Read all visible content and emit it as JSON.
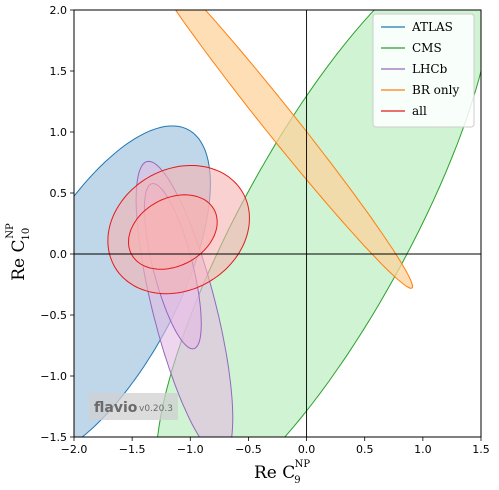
{
  "chart_data": {
    "type": "contour",
    "xlim": [
      -2.0,
      1.5
    ],
    "ylim": [
      -1.5,
      2.0
    ],
    "x_ticks": [
      -2.0,
      -1.5,
      -1.0,
      -0.5,
      0.0,
      0.5,
      1.0,
      1.5
    ],
    "y_ticks": [
      -1.5,
      -1.0,
      -0.5,
      0.0,
      0.5,
      1.0,
      1.5,
      2.0
    ],
    "x_tick_labels": [
      "−2.0",
      "−1.5",
      "−1.0",
      "−0.5",
      "0.0",
      "0.5",
      "1.0",
      "1.5"
    ],
    "y_tick_labels": [
      "−1.5",
      "−1.0",
      "−0.5",
      "0.0",
      "0.5",
      "1.0",
      "1.5",
      "2.0"
    ],
    "xlabel": {
      "main": "Re C",
      "sub": "9",
      "sup": "NP"
    },
    "ylabel": {
      "main": "Re C",
      "sub": "10",
      "sup": "NP"
    },
    "grid": false,
    "zero_lines": true,
    "legend_position": "top-right",
    "watermark": {
      "name": "flavio",
      "version": "v0.20.3"
    },
    "series": [
      {
        "name": "ATLAS",
        "color": "#1f77b4",
        "fill": "#aac9e2",
        "regions": [
          {
            "level": "1sigma",
            "center": [
              -1.78,
              -0.33
            ],
            "radii": [
              0.64,
              1.55
            ],
            "angle_deg": -30
          }
        ]
      },
      {
        "name": "CMS",
        "color": "#2ca02c",
        "fill": "#bfefc4",
        "regions": [
          {
            "level": "1sigma",
            "center": [
              0.15,
              0.2
            ],
            "radii": [
              0.72,
              2.6
            ],
            "angle_deg": -30
          }
        ]
      },
      {
        "name": "LHCb",
        "color": "#9467bd",
        "fill": "#e3bde3",
        "regions": [
          {
            "level": "2sigma",
            "center": [
              -1.05,
              -0.45
            ],
            "radii": [
              0.27,
              1.25
            ],
            "angle_deg": 15
          },
          {
            "level": "1sigma",
            "center": [
              -1.15,
              -0.1
            ],
            "radii": [
              0.17,
              0.7
            ],
            "angle_deg": 15
          }
        ]
      },
      {
        "name": "BR only",
        "color": "#ff7f0e",
        "fill": "#fdd39c",
        "regions": [
          {
            "level": "1sigma",
            "center": [
              -0.25,
              1.1
            ],
            "radii": [
              0.13,
              1.8
            ],
            "angle_deg": 40
          }
        ]
      },
      {
        "name": "all",
        "color": "#e31a1c",
        "fill": "#f7b3b3",
        "regions": [
          {
            "level": "2sigma",
            "center": [
              -1.1,
              0.2
            ],
            "radii": [
              0.63,
              0.5
            ],
            "angle_deg": 25
          },
          {
            "level": "1sigma",
            "center": [
              -1.15,
              0.18
            ],
            "radii": [
              0.4,
              0.28
            ],
            "angle_deg": 25
          }
        ]
      }
    ]
  }
}
